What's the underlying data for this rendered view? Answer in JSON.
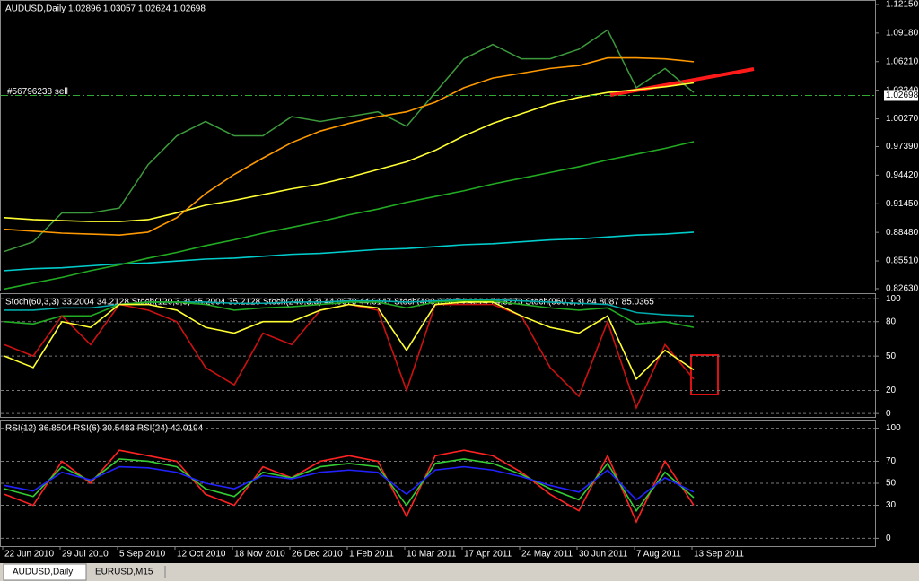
{
  "chart_data": [
    {
      "type": "line",
      "title": "AUDUSD,Daily  1.02896 1.03057 1.02624 1.02698",
      "ylim": [
        0.8244,
        1.1252
      ],
      "yticks": [
        {
          "value": 1.1215,
          "label": "1.12150"
        },
        {
          "value": 1.0918,
          "label": "1.09180"
        },
        {
          "value": 1.0621,
          "label": "1.06210"
        },
        {
          "value": 1.0324,
          "label": "1.03240"
        },
        {
          "value": 1.0027,
          "label": "1.00270"
        },
        {
          "value": 0.9739,
          "label": "0.97390"
        },
        {
          "value": 0.9442,
          "label": "0.94420"
        },
        {
          "value": 0.9145,
          "label": "0.91450"
        },
        {
          "value": 0.8848,
          "label": "0.88480"
        },
        {
          "value": 0.8551,
          "label": "0.85510"
        },
        {
          "value": 0.8263,
          "label": "0.82630"
        }
      ],
      "grid": false,
      "current_price": {
        "value": 1.02698,
        "label": "1.02698"
      },
      "order_label": "#56796238 sell",
      "series": [
        {
          "color": "#3c9a3c",
          "values": [
            0.865,
            0.875,
            0.905,
            0.905,
            0.91,
            0.955,
            0.985,
            1.0,
            0.985,
            0.985,
            1.005,
            1.0,
            1.005,
            1.01,
            0.995,
            1.03,
            1.065,
            1.08,
            1.065,
            1.065,
            1.075,
            1.095,
            1.035,
            1.055,
            1.03
          ]
        },
        {
          "color": "#00cccc",
          "values": [
            0.845,
            0.847,
            0.848,
            0.85,
            0.852,
            0.853,
            0.855,
            0.857,
            0.858,
            0.86,
            0.862,
            0.863,
            0.865,
            0.867,
            0.868,
            0.87,
            0.872,
            0.873,
            0.875,
            0.877,
            0.878,
            0.88,
            0.882,
            0.883,
            0.885
          ]
        },
        {
          "color": "#22aa22",
          "values": [
            0.826,
            0.832,
            0.838,
            0.845,
            0.851,
            0.858,
            0.864,
            0.871,
            0.877,
            0.884,
            0.89,
            0.896,
            0.903,
            0.909,
            0.916,
            0.922,
            0.928,
            0.935,
            0.941,
            0.947,
            0.953,
            0.96,
            0.966,
            0.972,
            0.979
          ]
        },
        {
          "color": "#ffff33",
          "values": [
            0.9,
            0.898,
            0.897,
            0.896,
            0.896,
            0.898,
            0.905,
            0.913,
            0.918,
            0.924,
            0.93,
            0.935,
            0.942,
            0.95,
            0.958,
            0.97,
            0.985,
            0.998,
            1.008,
            1.018,
            1.025,
            1.03,
            1.033,
            1.036,
            1.04
          ]
        },
        {
          "color": "#ff9900",
          "values": [
            0.888,
            0.886,
            0.884,
            0.883,
            0.882,
            0.885,
            0.9,
            0.925,
            0.945,
            0.962,
            0.978,
            0.99,
            0.998,
            1.005,
            1.01,
            1.02,
            1.035,
            1.045,
            1.05,
            1.055,
            1.058,
            1.066,
            1.066,
            1.065,
            1.062
          ]
        }
      ]
    },
    {
      "type": "line",
      "title": "Stoch(60,3,3) 33.2004 34.2128  Stoch(120,3,3) 35.2004 35.2128  Stoch(240,3,3) 44.0670 44.6147  Stoch(480,3,3) 74.4314 74.8273  Stoch(960,3,3) 84.8087 85.0365",
      "ylim": [
        -3,
        104
      ],
      "yticks": [
        100,
        80,
        50,
        20,
        0
      ],
      "grid": true,
      "series": [
        {
          "color": "#00aaaa",
          "values": [
            90,
            90,
            92,
            92,
            95,
            97,
            97,
            97,
            96,
            96,
            97,
            97,
            98,
            98,
            97,
            98,
            99,
            99,
            98,
            97,
            96,
            95,
            88,
            86,
            85
          ]
        },
        {
          "color": "#22aa22",
          "values": [
            80,
            78,
            85,
            85,
            95,
            97,
            97,
            95,
            90,
            92,
            93,
            95,
            97,
            97,
            92,
            97,
            98,
            98,
            95,
            92,
            90,
            92,
            78,
            80,
            75
          ]
        },
        {
          "color": "#cc1111",
          "values": [
            60,
            50,
            85,
            60,
            95,
            90,
            80,
            40,
            25,
            70,
            60,
            90,
            95,
            90,
            20,
            95,
            95,
            95,
            85,
            40,
            15,
            80,
            5,
            60,
            30
          ]
        },
        {
          "color": "#ffff33",
          "values": [
            50,
            40,
            80,
            75,
            95,
            95,
            90,
            75,
            70,
            80,
            80,
            90,
            95,
            92,
            55,
            95,
            97,
            97,
            85,
            75,
            70,
            85,
            30,
            55,
            38
          ]
        }
      ]
    },
    {
      "type": "line",
      "title": "RSI(12) 36.8504  RSI(6) 30.5483  RSI(24) 42.0194",
      "ylim": [
        -7,
        107
      ],
      "yticks": [
        100,
        70,
        50,
        30,
        0
      ],
      "grid": true,
      "categories": [
        "22 Jun 2010",
        null,
        "29 Jul 2010",
        null,
        "5 Sep 2010",
        null,
        "12 Oct 2010",
        null,
        "18 Nov 2010",
        null,
        "26 Dec 2010",
        null,
        "1 Feb 2011",
        null,
        "10 Mar 2011",
        null,
        "17 Apr 2011",
        null,
        "24 May 2011",
        null,
        "30 Jun 2011",
        null,
        "7 Aug 2011",
        null,
        "13 Sep 2011"
      ],
      "series": [
        {
          "color": "#ff2222",
          "values": [
            40,
            30,
            70,
            50,
            80,
            75,
            70,
            40,
            30,
            65,
            55,
            70,
            75,
            70,
            20,
            75,
            80,
            75,
            60,
            40,
            25,
            75,
            15,
            70,
            30
          ]
        },
        {
          "color": "#33cc33",
          "values": [
            45,
            38,
            65,
            52,
            72,
            70,
            65,
            45,
            38,
            60,
            55,
            65,
            68,
            65,
            30,
            68,
            72,
            68,
            58,
            45,
            35,
            68,
            25,
            60,
            37
          ]
        },
        {
          "color": "#2222ff",
          "values": [
            48,
            43,
            60,
            53,
            65,
            64,
            60,
            50,
            45,
            57,
            54,
            60,
            62,
            60,
            40,
            62,
            65,
            62,
            56,
            48,
            42,
            62,
            35,
            55,
            42
          ]
        }
      ]
    }
  ],
  "tabs": [
    "AUDUSD,Daily",
    "EURUSD,M15"
  ]
}
